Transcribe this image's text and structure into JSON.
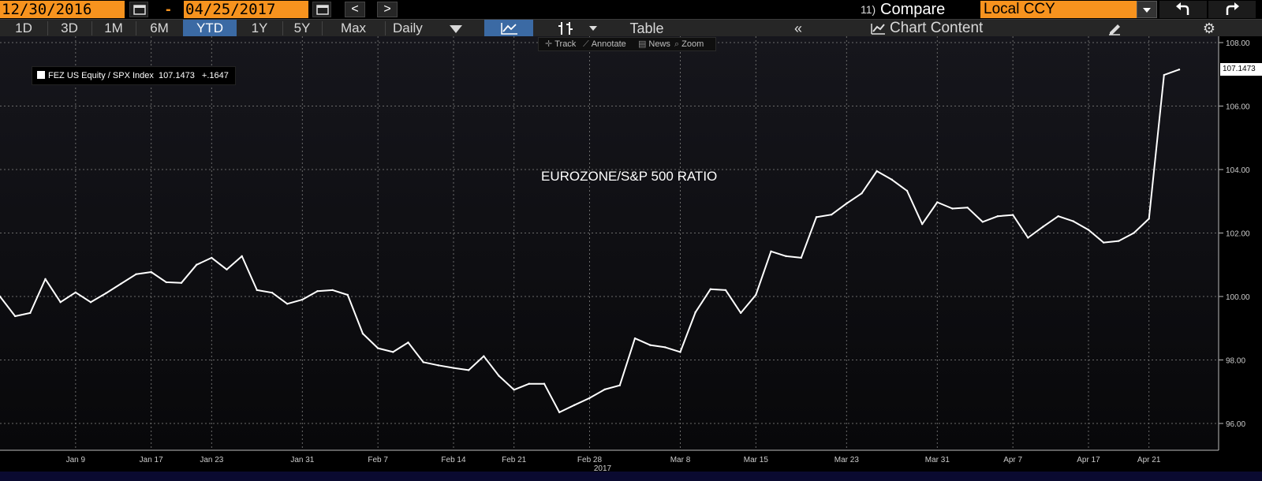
{
  "toolbar": {
    "start_date": "12/30/2016",
    "separator": "-",
    "end_date": "04/25/2017",
    "prev_label": "<",
    "next_label": ">",
    "compare_num": "11)",
    "compare_label": "Compare",
    "currency": "Local CCY"
  },
  "timeframes": [
    {
      "label": "1D",
      "active": false
    },
    {
      "label": "3D",
      "active": false
    },
    {
      "label": "1M",
      "active": false
    },
    {
      "label": "6M",
      "active": false
    },
    {
      "label": "YTD",
      "active": true
    },
    {
      "label": "1Y",
      "active": false
    },
    {
      "label": "5Y",
      "active": false
    },
    {
      "label": "Max",
      "active": false
    }
  ],
  "frequency": "Daily",
  "table_label": "Table",
  "chart_content_label": "Chart Content",
  "collapse_label": "«",
  "chart_tools": {
    "track": "Track",
    "annotate": "Annotate",
    "news": "News",
    "zoom": "Zoom"
  },
  "legend": {
    "security": "FEZ US Equity / SPX Index",
    "last": "107.1473",
    "change": "+.1647"
  },
  "annotation": "EUROZONE/S&P 500 RATIO",
  "colors": {
    "accent_orange": "#f7931e",
    "active_blue": "#3b6aa4",
    "series": "#ffffff",
    "grid": "#6a6a6a"
  },
  "chart_data": {
    "type": "line",
    "title": "EUROZONE/S&P 500 RATIO",
    "xlabel": "2017",
    "ylabel": "",
    "grid": true,
    "legend_position": "top-left",
    "ylim": [
      95.0,
      108.0
    ],
    "yticks": [
      "96.00",
      "98.00",
      "100.00",
      "102.00",
      "104.00",
      "106.00",
      "108.00"
    ],
    "yticks_values": [
      96,
      98,
      100,
      102,
      104,
      106,
      108
    ],
    "xticks": [
      {
        "label": "Jan 9",
        "date": "2017-01-09"
      },
      {
        "label": "Jan 17",
        "date": "2017-01-17"
      },
      {
        "label": "Jan 23",
        "date": "2017-01-23"
      },
      {
        "label": "Jan 31",
        "date": "2017-01-31"
      },
      {
        "label": "Feb 7",
        "date": "2017-02-07"
      },
      {
        "label": "Feb 14",
        "date": "2017-02-14"
      },
      {
        "label": "Feb 21",
        "date": "2017-02-21"
      },
      {
        "label": "Feb 28",
        "date": "2017-02-28"
      },
      {
        "label": "Mar 8",
        "date": "2017-03-08"
      },
      {
        "label": "Mar 15",
        "date": "2017-03-15"
      },
      {
        "label": "Mar 23",
        "date": "2017-03-23"
      },
      {
        "label": "Mar 31",
        "date": "2017-03-31"
      },
      {
        "label": "Apr 7",
        "date": "2017-04-07"
      },
      {
        "label": "Apr 17",
        "date": "2017-04-17"
      },
      {
        "label": "Apr 21",
        "date": "2017-04-21"
      }
    ],
    "last_value_label": "107.1473",
    "series": [
      {
        "name": "FEZ US Equity / SPX Index",
        "color": "#ffffff",
        "points": [
          [
            "2016-12-30",
            100.0
          ],
          [
            "2017-01-03",
            99.38
          ],
          [
            "2017-01-04",
            99.48
          ],
          [
            "2017-01-05",
            100.55
          ],
          [
            "2017-01-06",
            99.82
          ],
          [
            "2017-01-09",
            100.13
          ],
          [
            "2017-01-10",
            99.82
          ],
          [
            "2017-01-11",
            100.1
          ],
          [
            "2017-01-12",
            100.4
          ],
          [
            "2017-01-13",
            100.7
          ],
          [
            "2017-01-17",
            100.77
          ],
          [
            "2017-01-18",
            100.45
          ],
          [
            "2017-01-19",
            100.43
          ],
          [
            "2017-01-20",
            101.0
          ],
          [
            "2017-01-23",
            101.22
          ],
          [
            "2017-01-24",
            100.85
          ],
          [
            "2017-01-25",
            101.27
          ],
          [
            "2017-01-26",
            100.2
          ],
          [
            "2017-01-27",
            100.12
          ],
          [
            "2017-01-30",
            99.77
          ],
          [
            "2017-01-31",
            99.9
          ],
          [
            "2017-02-01",
            100.17
          ],
          [
            "2017-02-02",
            100.2
          ],
          [
            "2017-02-03",
            100.05
          ],
          [
            "2017-02-06",
            98.83
          ],
          [
            "2017-02-07",
            98.37
          ],
          [
            "2017-02-08",
            98.25
          ],
          [
            "2017-02-09",
            98.55
          ],
          [
            "2017-02-10",
            97.93
          ],
          [
            "2017-02-13",
            97.83
          ],
          [
            "2017-02-14",
            97.75
          ],
          [
            "2017-02-15",
            97.68
          ],
          [
            "2017-02-16",
            98.12
          ],
          [
            "2017-02-17",
            97.5
          ],
          [
            "2017-02-21",
            97.06
          ],
          [
            "2017-02-22",
            97.25
          ],
          [
            "2017-02-23",
            97.25
          ],
          [
            "2017-02-24",
            96.35
          ],
          [
            "2017-02-27",
            96.58
          ],
          [
            "2017-02-28",
            96.8
          ],
          [
            "2017-03-01",
            97.07
          ],
          [
            "2017-03-02",
            97.2
          ],
          [
            "2017-03-03",
            98.68
          ],
          [
            "2017-03-06",
            98.47
          ],
          [
            "2017-03-07",
            98.4
          ],
          [
            "2017-03-08",
            98.25
          ],
          [
            "2017-03-09",
            99.5
          ],
          [
            "2017-03-10",
            100.23
          ],
          [
            "2017-03-13",
            100.2
          ],
          [
            "2017-03-14",
            99.48
          ],
          [
            "2017-03-15",
            100.05
          ],
          [
            "2017-03-16",
            101.42
          ],
          [
            "2017-03-17",
            101.27
          ],
          [
            "2017-03-20",
            101.22
          ],
          [
            "2017-03-21",
            102.5
          ],
          [
            "2017-03-22",
            102.58
          ],
          [
            "2017-03-23",
            102.93
          ],
          [
            "2017-03-24",
            103.25
          ],
          [
            "2017-03-27",
            103.95
          ],
          [
            "2017-03-28",
            103.68
          ],
          [
            "2017-03-29",
            103.33
          ],
          [
            "2017-03-30",
            102.28
          ],
          [
            "2017-03-31",
            102.97
          ],
          [
            "2017-04-03",
            102.77
          ],
          [
            "2017-04-04",
            102.8
          ],
          [
            "2017-04-05",
            102.35
          ],
          [
            "2017-04-06",
            102.53
          ],
          [
            "2017-04-07",
            102.57
          ],
          [
            "2017-04-10",
            101.85
          ],
          [
            "2017-04-11",
            102.2
          ],
          [
            "2017-04-12",
            102.53
          ],
          [
            "2017-04-13",
            102.37
          ],
          [
            "2017-04-17",
            102.1
          ],
          [
            "2017-04-18",
            101.7
          ],
          [
            "2017-04-19",
            101.75
          ],
          [
            "2017-04-20",
            102.0
          ],
          [
            "2017-04-21",
            102.45
          ],
          [
            "2017-04-24",
            106.98
          ],
          [
            "2017-04-25",
            107.15
          ]
        ]
      }
    ]
  }
}
